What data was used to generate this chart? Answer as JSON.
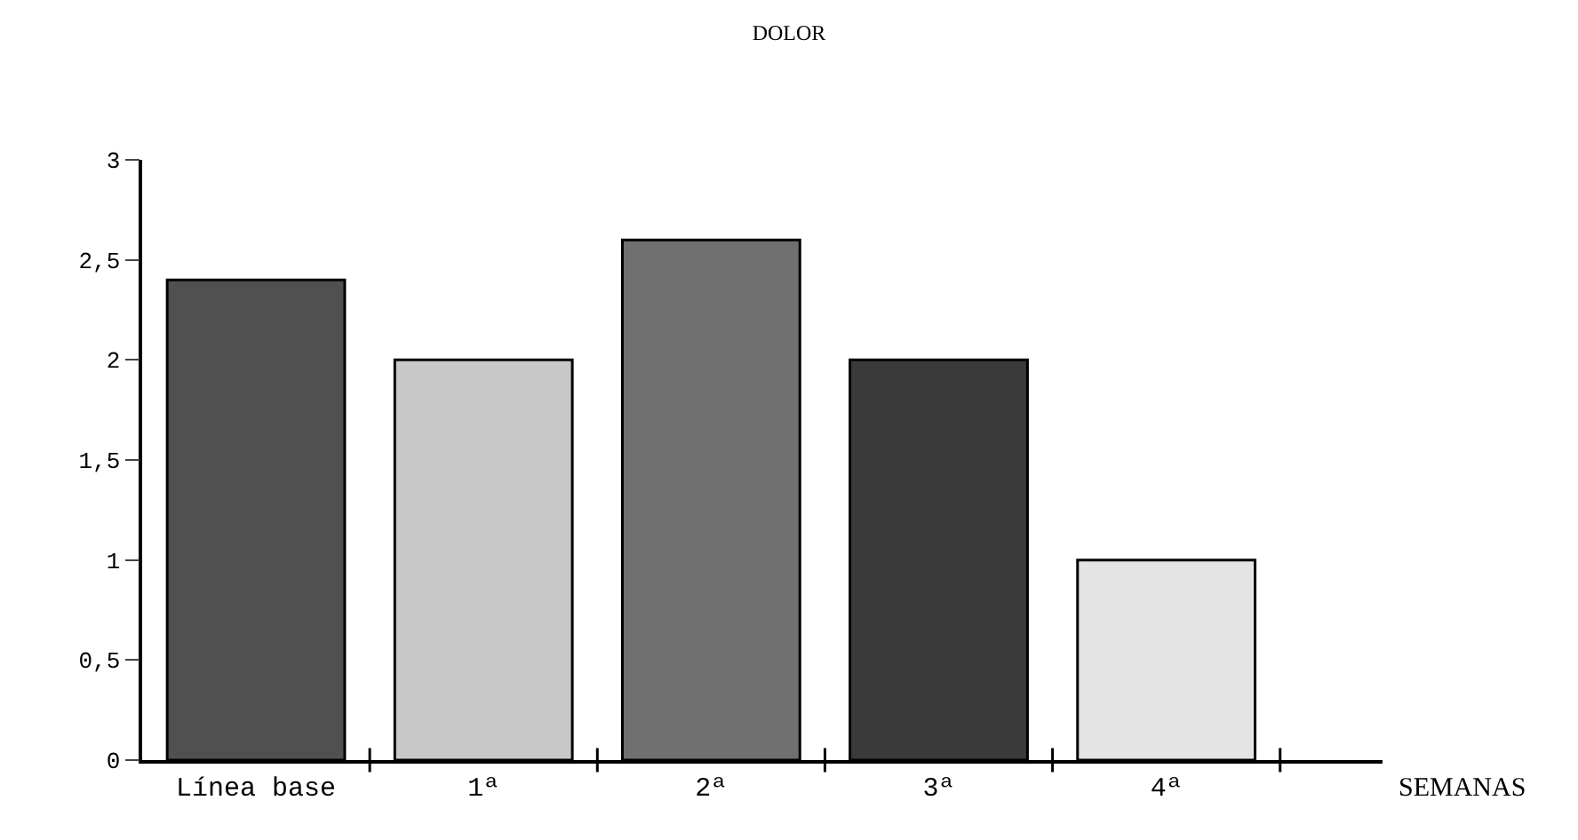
{
  "chart_data": {
    "type": "bar",
    "title": "DOLOR",
    "xlabel": "SEMANAS",
    "categories": [
      "Línea base",
      "1ª",
      "2ª",
      "3ª",
      "4ª"
    ],
    "values": [
      2.4,
      2.0,
      2.6,
      2.0,
      1.0
    ],
    "colors": [
      "#505050",
      "#c8c8c8",
      "#707070",
      "#3a3a3a",
      "#e4e4e4"
    ],
    "ylim": [
      0,
      3
    ],
    "yticks": [
      0,
      {
        "value": 0.5,
        "label": "0,5"
      },
      1,
      {
        "value": 1.5,
        "label": "1,5"
      },
      2,
      {
        "value": 2.5,
        "label": "2,5"
      },
      3
    ],
    "legend": false
  }
}
